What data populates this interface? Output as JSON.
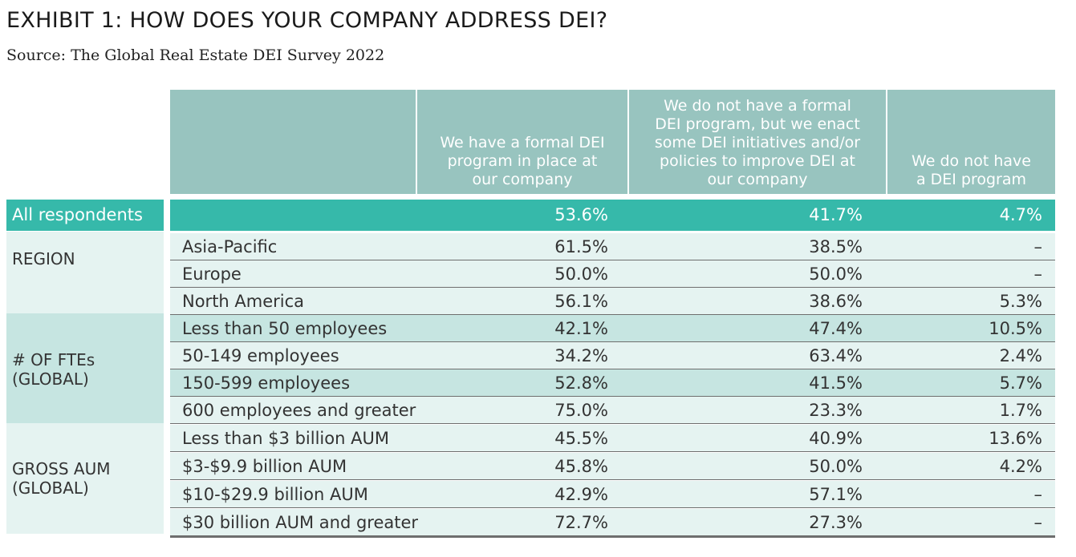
{
  "title": "EXHIBIT 1: HOW DOES YOUR COMPANY ADDRESS DEI?",
  "source": "Source: The Global Real Estate DEI Survey 2022",
  "chart_data": {
    "type": "table",
    "columns": [
      {
        "lines": [
          "We have a formal DEI",
          "program in place at",
          "our company"
        ]
      },
      {
        "lines": [
          "We do not have a formal",
          "DEI program, but we enact",
          "some DEI initiatives and/or",
          "policies to improve DEI at",
          "our company"
        ]
      },
      {
        "lines": [
          "We do not have",
          "a DEI program"
        ]
      }
    ],
    "all_respondents": {
      "label": "All respondents",
      "values": [
        "53.6%",
        "41.7%",
        "4.7%"
      ]
    },
    "groups": [
      {
        "label": "REGION",
        "rows": [
          {
            "label": "Asia-Pacific",
            "values": [
              "61.5%",
              "38.5%",
              "–"
            ]
          },
          {
            "label": "Europe",
            "values": [
              "50.0%",
              "50.0%",
              "–"
            ]
          },
          {
            "label": "North America",
            "values": [
              "56.1%",
              "38.6%",
              "5.3%"
            ]
          }
        ]
      },
      {
        "label": "# OF FTEs\n(GLOBAL)",
        "rows": [
          {
            "label": "Less than 50 employees",
            "values": [
              "42.1%",
              "47.4%",
              "10.5%"
            ]
          },
          {
            "label": "50-149 employees",
            "values": [
              "34.2%",
              "63.4%",
              "2.4%"
            ]
          },
          {
            "label": "150-599 employees",
            "values": [
              "52.8%",
              "41.5%",
              "5.7%"
            ]
          },
          {
            "label": "600 employees and greater",
            "values": [
              "75.0%",
              "23.3%",
              "1.7%"
            ]
          }
        ]
      },
      {
        "label": "GROSS AUM\n(GLOBAL)",
        "rows": [
          {
            "label": "Less than $3 billion AUM",
            "values": [
              "45.5%",
              "40.9%",
              "13.6%"
            ]
          },
          {
            "label": "$3-$9.9 billion AUM",
            "values": [
              "45.8%",
              "50.0%",
              "4.2%"
            ]
          },
          {
            "label": "$10-$29.9 billion AUM",
            "values": [
              "42.9%",
              "57.1%",
              "–"
            ]
          },
          {
            "label": "$30 billion AUM and greater",
            "values": [
              "72.7%",
              "27.3%",
              "–"
            ]
          }
        ]
      }
    ],
    "colors": {
      "header": "#98c4bf",
      "highlight": "#36b9aa",
      "band_light": "#e5f3f1",
      "band_mid": "#c6e5e1"
    }
  }
}
